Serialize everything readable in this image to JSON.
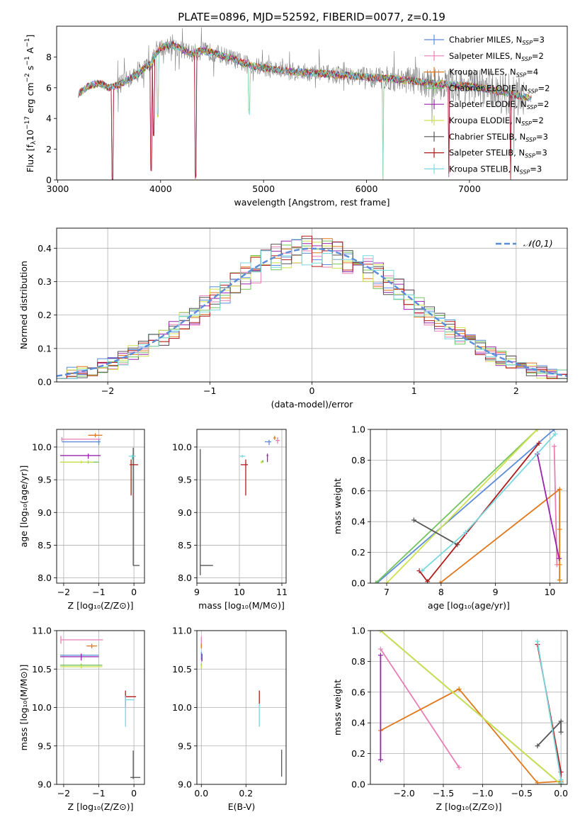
{
  "figure_title": "PLATE=0896, MJD=52592, FIBERID=0077, z=0.19",
  "colors": {
    "Chabrier MILES": "#5b8bd9",
    "Salpeter MILES": "#e87fb4",
    "Kroupa MILES": "#e0781c",
    "Chabrier ELODIE": "#73c45e",
    "Salpeter ELODIE": "#9a25ad",
    "Kroupa ELODIE": "#cde24c",
    "Chabrier STELIB": "#555555",
    "Salpeter STELIB": "#b01a1a",
    "Kroupa STELIB": "#7ad8de",
    "normal_fit": "#5b8bd9",
    "grid": "#b0b0b0"
  },
  "chart_data": [
    {
      "type": "line",
      "panel": "spectrum",
      "title": "PLATE=0896, MJD=52592, FIBERID=0077, z=0.19",
      "xlabel": "wavelength [Angstrom, rest frame]",
      "ylabel_parts": [
        "Flux [f",
        "λ",
        "10",
        "−17",
        " erg cm",
        "−2",
        " s",
        "−1",
        " A",
        "−1",
        "]"
      ],
      "xlim": [
        2990,
        7950
      ],
      "ylim": [
        0,
        10
      ],
      "xticks": [
        3000,
        4000,
        5000,
        6000,
        7000
      ],
      "yticks": [
        0,
        2,
        4,
        6,
        8
      ],
      "grid": false,
      "legend_position": "right",
      "legend": [
        {
          "name": "Chabrier MILES",
          "n": "3"
        },
        {
          "name": "Salpeter MILES",
          "n": "2"
        },
        {
          "name": "Kroupa MILES",
          "n": "4"
        },
        {
          "name": "Chabrier ELODIE",
          "n": "2"
        },
        {
          "name": "Salpeter ELODIE",
          "n": "2"
        },
        {
          "name": "Kroupa ELODIE",
          "n": "2"
        },
        {
          "name": "Chabrier STELIB",
          "n": "3"
        },
        {
          "name": "Salpeter STELIB",
          "n": "3"
        },
        {
          "name": "Kroupa STELIB",
          "n": "3"
        }
      ],
      "continuum": {
        "x": [
          3200,
          3300,
          3400,
          3500,
          3600,
          3700,
          3800,
          3900,
          4000,
          4100,
          4200,
          4300,
          4400,
          4500,
          4600,
          4700,
          4800,
          4900,
          5000,
          5200,
          5400,
          5600,
          5800,
          6000,
          6200,
          6400,
          6600,
          6800,
          7000,
          7200,
          7400,
          7600
        ],
        "y": [
          5.6,
          6.1,
          6.3,
          6.0,
          6.2,
          6.6,
          7.0,
          7.6,
          8.6,
          8.8,
          8.5,
          8.2,
          8.4,
          8.3,
          8.1,
          7.9,
          7.6,
          7.4,
          7.3,
          7.1,
          7.0,
          6.9,
          6.8,
          6.7,
          6.6,
          6.5,
          6.3,
          6.2,
          6.1,
          5.9,
          5.6,
          5.3
        ]
      },
      "absorption_features": [
        {
          "wave": 3530,
          "depth": 6.0
        },
        {
          "wave": 3905,
          "depth": 7.0
        },
        {
          "wave": 3935,
          "depth": 5.0
        },
        {
          "wave": 3970,
          "depth": 4.0
        },
        {
          "wave": 4340,
          "depth": 8.0
        },
        {
          "wave": 4861,
          "depth": 3.0
        },
        {
          "wave": 6160,
          "depth": 6.5
        },
        {
          "wave": 6800,
          "depth": 6.0
        },
        {
          "wave": 7400,
          "depth": 5.5
        }
      ],
      "data_trace": {
        "name": "data",
        "color": "#808080",
        "x_start": 3580,
        "x_end": 7530,
        "noise_amplitude": 1.2,
        "noise_growth": 1.6
      }
    },
    {
      "type": "histogram",
      "panel": "residuals",
      "xlabel": "(data-model)/error",
      "ylabel": "Normed distribution",
      "xlim": [
        -2.5,
        2.5
      ],
      "ylim": [
        0,
        0.46
      ],
      "xticks": [
        -2,
        -1,
        0,
        1,
        2
      ],
      "yticks": [
        0.0,
        0.1,
        0.2,
        0.3,
        0.4
      ],
      "grid": true,
      "legend_position": "top-right",
      "reference_curve": {
        "name": "𝒩(0,1)",
        "mean": 0,
        "sigma": 1,
        "style": "dashed"
      },
      "bin_width": 0.1,
      "bin_start": -2.5,
      "noise_amplitude": 0.045
    },
    {
      "type": "errorbar",
      "panel": "age_vs_metallicity",
      "xlabel": "Z [log₁₀(Z/Z⊙)]",
      "ylabel": "age  [log₁₀(age/yr)]",
      "xlim": [
        -2.2,
        0.3
      ],
      "ylim": [
        7.92,
        10.27
      ],
      "xticks": [
        -2,
        -1,
        0
      ],
      "yticks": [
        8.0,
        8.5,
        9.0,
        9.5,
        10.0
      ],
      "grid": true,
      "points": [
        {
          "model": "Chabrier MILES",
          "x": -1.0,
          "xerr": [
            1.05,
            0.05
          ],
          "y": 10.08,
          "yerr": [
            0.05,
            0.04
          ]
        },
        {
          "model": "Salpeter MILES",
          "x": -2.05,
          "xerr": [
            0.02,
            1.1
          ],
          "y": 10.12,
          "yerr": [
            0.03,
            0.03
          ]
        },
        {
          "model": "Kroupa MILES",
          "x": -1.1,
          "xerr": [
            0.2,
            0.2
          ],
          "y": 10.18,
          "yerr": [
            0.03,
            0.03
          ]
        },
        {
          "model": "Chabrier ELODIE",
          "x": -1.3,
          "xerr": [
            0.8,
            0.3
          ],
          "y": 9.77,
          "yerr": [
            0.02,
            0.02
          ]
        },
        {
          "model": "Salpeter ELODIE",
          "x": -1.3,
          "xerr": [
            0.8,
            0.35
          ],
          "y": 9.87,
          "yerr": [
            0.05,
            0.03
          ]
        },
        {
          "model": "Kroupa ELODIE",
          "x": -1.5,
          "xerr": [
            0.6,
            0.35
          ],
          "y": 9.77,
          "yerr": [
            0.02,
            0.02
          ]
        },
        {
          "model": "Chabrier STELIB",
          "x": -0.02,
          "xerr": [
            0.0,
            0.18
          ],
          "y": 8.19,
          "yerr": [
            0.0,
            1.8
          ]
        },
        {
          "model": "Salpeter STELIB",
          "x": -0.08,
          "xerr": [
            0.04,
            0.2
          ],
          "y": 9.73,
          "yerr": [
            0.47,
            0.08
          ]
        },
        {
          "model": "Kroupa STELIB",
          "x": -0.05,
          "xerr": [
            0.1,
            0.1
          ],
          "y": 9.86,
          "yerr": [
            0.05,
            0.02
          ]
        }
      ]
    },
    {
      "type": "errorbar",
      "panel": "age_vs_mass",
      "xlabel": "mass [log₁₀(M/M⊙)]",
      "ylabel": "",
      "xlim": [
        9.0,
        11.1
      ],
      "ylim": [
        7.92,
        10.27
      ],
      "xticks": [
        9,
        10,
        11
      ],
      "yticks": [
        8.0,
        8.5,
        9.0,
        9.5,
        10.0
      ],
      "grid": true,
      "points": [
        {
          "model": "Chabrier MILES",
          "x": 10.7,
          "xerr": [
            0.1,
            0.05
          ],
          "y": 10.08,
          "yerr": [
            0.05,
            0.03
          ]
        },
        {
          "model": "Salpeter MILES",
          "x": 10.9,
          "xerr": [
            0.05,
            0.05
          ],
          "y": 10.1,
          "yerr": [
            0.05,
            0.05
          ]
        },
        {
          "model": "Kroupa MILES",
          "x": 10.83,
          "xerr": [
            0.03,
            0.03
          ],
          "y": 10.14,
          "yerr": [
            0.03,
            0.03
          ]
        },
        {
          "model": "Chabrier ELODIE",
          "x": 10.55,
          "xerr": [
            0.02,
            0.02
          ],
          "y": 9.78,
          "yerr": [
            0.02,
            0.02
          ]
        },
        {
          "model": "Salpeter ELODIE",
          "x": 10.66,
          "xerr": [
            0.02,
            0.02
          ],
          "y": 9.87,
          "yerr": [
            0.1,
            0.03
          ]
        },
        {
          "model": "Kroupa ELODIE",
          "x": 10.52,
          "xerr": [
            0.02,
            0.02
          ],
          "y": 9.77,
          "yerr": [
            0.02,
            0.02
          ]
        },
        {
          "model": "Chabrier STELIB",
          "x": 9.08,
          "xerr": [
            0.0,
            0.3
          ],
          "y": 8.19,
          "yerr": [
            0.15,
            1.78
          ]
        },
        {
          "model": "Salpeter STELIB",
          "x": 10.15,
          "xerr": [
            0.12,
            0.05
          ],
          "y": 9.73,
          "yerr": [
            0.47,
            0.08
          ]
        },
        {
          "model": "Kroupa STELIB",
          "x": 10.07,
          "xerr": [
            0.07,
            0.07
          ],
          "y": 9.86,
          "yerr": [
            0.02,
            0.02
          ]
        }
      ]
    },
    {
      "type": "line",
      "panel": "mass_weight_vs_age",
      "xlabel": "age  [log₁₀(age/yr)]",
      "ylabel": "mass weight",
      "xlim": [
        6.7,
        10.32
      ],
      "ylim": [
        0,
        1
      ],
      "xticks": [
        7,
        8,
        9,
        10
      ],
      "yticks": [
        0.0,
        0.2,
        0.4,
        0.6,
        0.8,
        1.0
      ],
      "grid": true,
      "series": [
        {
          "model": "Chabrier MILES",
          "x": [
            6.82,
            10.08
          ],
          "y": [
            0.0,
            1.0
          ]
        },
        {
          "model": "Salpeter MILES",
          "x": [
            10.08,
            10.13
          ],
          "y": [
            0.89,
            0.12
          ]
        },
        {
          "model": "Kroupa MILES",
          "x": [
            7.98,
            10.18,
            10.18,
            10.18,
            10.18
          ],
          "y": [
            0.0,
            0.61,
            0.35,
            0.12,
            0.02
          ]
        },
        {
          "model": "Chabrier ELODIE",
          "x": [
            6.8,
            9.77
          ],
          "y": [
            0.0,
            1.0
          ]
        },
        {
          "model": "Salpeter ELODIE",
          "x": [
            9.77,
            10.17
          ],
          "y": [
            0.84,
            0.16
          ]
        },
        {
          "model": "Kroupa ELODIE",
          "x": [
            7.0,
            9.77
          ],
          "y": [
            0.0,
            1.0
          ]
        },
        {
          "model": "Chabrier STELIB",
          "x": [
            7.5,
            8.3
          ],
          "y": [
            0.41,
            0.25
          ]
        },
        {
          "model": "Salpeter STELIB",
          "x": [
            7.6,
            7.75,
            9.8
          ],
          "y": [
            0.08,
            0.01,
            0.91
          ]
        },
        {
          "model": "Kroupa STELIB",
          "x": [
            7.65,
            8.45,
            10.1
          ],
          "y": [
            0.08,
            0.33,
            0.97
          ]
        }
      ]
    },
    {
      "type": "errorbar",
      "panel": "mass_vs_metallicity",
      "xlabel": "Z [log₁₀(Z/Z⊙)]",
      "ylabel": "mass [log₁₀(M/M⊙)]",
      "xlim": [
        -2.2,
        0.3
      ],
      "ylim": [
        9.0,
        11.0
      ],
      "xticks": [
        -2,
        -1,
        0
      ],
      "yticks": [
        9.0,
        9.5,
        10.0,
        10.5,
        11.0
      ],
      "grid": true,
      "points": [
        {
          "model": "Chabrier MILES",
          "x": -1.5,
          "xerr": [
            0.6,
            0.5
          ],
          "y": 10.68,
          "yerr": [
            0.02,
            0.02
          ]
        },
        {
          "model": "Salpeter MILES",
          "x": -2.08,
          "xerr": [
            0.0,
            1.2
          ],
          "y": 10.88,
          "yerr": [
            0.05,
            0.05
          ]
        },
        {
          "model": "Kroupa MILES",
          "x": -1.2,
          "xerr": [
            0.15,
            0.15
          ],
          "y": 10.8,
          "yerr": [
            0.03,
            0.03
          ]
        },
        {
          "model": "Chabrier ELODIE",
          "x": -1.5,
          "xerr": [
            0.6,
            0.6
          ],
          "y": 10.55,
          "yerr": [
            0.02,
            0.02
          ]
        },
        {
          "model": "Salpeter ELODIE",
          "x": -1.5,
          "xerr": [
            0.6,
            0.5
          ],
          "y": 10.66,
          "yerr": [
            0.05,
            0.04
          ]
        },
        {
          "model": "Kroupa ELODIE",
          "x": -1.5,
          "xerr": [
            0.6,
            0.6
          ],
          "y": 10.53,
          "yerr": [
            0.02,
            0.02
          ]
        },
        {
          "model": "Chabrier STELIB",
          "x": -0.02,
          "xerr": [
            0.08,
            0.2
          ],
          "y": 9.09,
          "yerr": [
            0.02,
            0.35
          ]
        },
        {
          "model": "Salpeter STELIB",
          "x": -0.24,
          "xerr": [
            0.02,
            0.3
          ],
          "y": 10.14,
          "yerr": [
            0.14,
            0.08
          ]
        },
        {
          "model": "Kroupa STELIB",
          "x": -0.24,
          "xerr": [
            0.02,
            0.25
          ],
          "y": 10.1,
          "yerr": [
            0.35,
            0.05
          ]
        }
      ]
    },
    {
      "type": "errorbar",
      "panel": "mass_vs_extinction",
      "xlabel": "E(B-V)",
      "ylabel": "",
      "xlim": [
        -0.02,
        0.38
      ],
      "ylim": [
        9.0,
        11.0
      ],
      "xticks": [
        0.0,
        0.2
      ],
      "yticks": [
        9.0,
        9.5,
        10.0,
        10.5,
        11.0
      ],
      "grid": true,
      "points": [
        {
          "model": "Chabrier MILES",
          "x": 0.0,
          "xerr": [
            0,
            0
          ],
          "y": 10.67,
          "yerr": [
            0.05,
            0.05
          ]
        },
        {
          "model": "Salpeter MILES",
          "x": 0.0,
          "xerr": [
            0,
            0
          ],
          "y": 10.86,
          "yerr": [
            0.06,
            0.06
          ]
        },
        {
          "model": "Kroupa MILES",
          "x": 0.0,
          "xerr": [
            0,
            0
          ],
          "y": 10.8,
          "yerr": [
            0.03,
            0.03
          ]
        },
        {
          "model": "Chabrier ELODIE",
          "x": 0.0,
          "xerr": [
            0,
            0
          ],
          "y": 10.54,
          "yerr": [
            0.03,
            0.03
          ]
        },
        {
          "model": "Salpeter ELODIE",
          "x": 0.003,
          "xerr": [
            0,
            0
          ],
          "y": 10.66,
          "yerr": [
            0.06,
            0.04
          ]
        },
        {
          "model": "Kroupa ELODIE",
          "x": 0.0,
          "xerr": [
            0,
            0
          ],
          "y": 10.53,
          "yerr": [
            0.02,
            0.02
          ]
        },
        {
          "model": "Chabrier STELIB",
          "x": 0.36,
          "xerr": [
            0,
            0
          ],
          "y": 9.1,
          "yerr": [
            0.0,
            0.35
          ]
        },
        {
          "model": "Salpeter STELIB",
          "x": 0.26,
          "xerr": [
            0,
            0
          ],
          "y": 10.14,
          "yerr": [
            0.1,
            0.08
          ]
        },
        {
          "model": "Kroupa STELIB",
          "x": 0.26,
          "xerr": [
            0,
            0
          ],
          "y": 9.95,
          "yerr": [
            0.2,
            0.1
          ]
        }
      ]
    },
    {
      "type": "line",
      "panel": "mass_weight_vs_metallicity",
      "xlabel": "Z [log₁₀(Z/Z⊙)]",
      "ylabel": "mass weight",
      "xlim": [
        -2.43,
        0.08
      ],
      "ylim": [
        0,
        1
      ],
      "xticks": [
        -2.0,
        -1.5,
        -1.0,
        -0.5,
        0.0
      ],
      "yticks": [
        0.0,
        0.2,
        0.4,
        0.6,
        0.8,
        1.0
      ],
      "grid": true,
      "series": [
        {
          "model": "Chabrier MILES",
          "x": [
            -2.3,
            0.0
          ],
          "y": [
            1.0,
            0.0
          ]
        },
        {
          "model": "Salpeter MILES",
          "x": [
            -2.3,
            -1.3
          ],
          "y": [
            0.88,
            0.11
          ]
        },
        {
          "model": "Kroupa MILES",
          "x": [
            -2.3,
            -1.3,
            -0.3,
            0.0
          ],
          "y": [
            0.35,
            0.62,
            0.01,
            0.02
          ]
        },
        {
          "model": "Chabrier ELODIE",
          "x": [
            -2.3,
            0.0
          ],
          "y": [
            1.0,
            0.0
          ]
        },
        {
          "model": "Salpeter ELODIE",
          "x": [
            -2.3,
            -2.3
          ],
          "y": [
            0.84,
            0.16
          ]
        },
        {
          "model": "Kroupa ELODIE",
          "x": [
            -2.3,
            0.0
          ],
          "y": [
            1.0,
            0.0
          ]
        },
        {
          "model": "Chabrier STELIB",
          "x": [
            -0.3,
            0.0,
            0.0
          ],
          "y": [
            0.25,
            0.41,
            0.34
          ]
        },
        {
          "model": "Salpeter STELIB",
          "x": [
            -0.3,
            0.0,
            0.0
          ],
          "y": [
            0.91,
            0.08,
            0.01
          ]
        },
        {
          "model": "Kroupa STELIB",
          "x": [
            -0.3,
            0.0,
            0.0
          ],
          "y": [
            0.93,
            0.03,
            0.01
          ]
        }
      ]
    }
  ]
}
